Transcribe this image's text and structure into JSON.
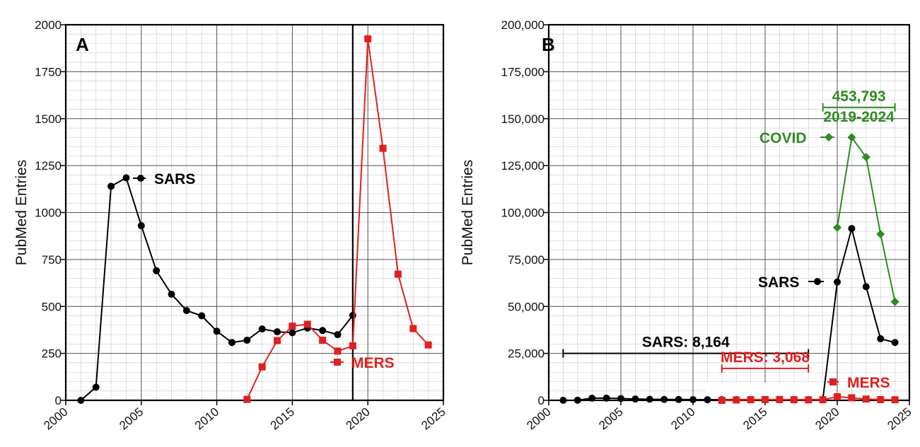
{
  "chart_data": [
    {
      "type": "line",
      "panel_label": "A",
      "ylabel": "PubMed Entries",
      "xlim": [
        2000,
        2025
      ],
      "ylim": [
        0,
        2000
      ],
      "x_ticks": [
        "2000",
        "2005",
        "2010",
        "2015",
        "2020",
        "2025"
      ],
      "y_ticks": [
        "0",
        "250",
        "500",
        "750",
        "1000",
        "1250",
        "1500",
        "1750",
        "2000"
      ],
      "grid": true,
      "vline_x": 2019,
      "series": [
        {
          "name": "SARS",
          "color": "#000000",
          "marker": "circle",
          "x": [
            2001,
            2002,
            2003,
            2004,
            2005,
            2006,
            2007,
            2008,
            2009,
            2010,
            2011,
            2012,
            2013,
            2014,
            2015,
            2016,
            2017,
            2018,
            2019
          ],
          "y": [
            0,
            70,
            1140,
            1185,
            930,
            690,
            565,
            478,
            450,
            368,
            308,
            320,
            380,
            365,
            360,
            385,
            372,
            350,
            452
          ]
        },
        {
          "name": "MERS",
          "color": "#e02020",
          "marker": "square",
          "x": [
            2012,
            2013,
            2014,
            2015,
            2016,
            2017,
            2018,
            2019,
            2020,
            2021,
            2022,
            2023,
            2024
          ],
          "y": [
            5,
            178,
            318,
            395,
            405,
            320,
            262,
            290,
            1925,
            1342,
            672,
            382,
            295
          ]
        }
      ],
      "annotations": [
        {
          "text": "SARS",
          "color": "#000000",
          "series": "SARS"
        },
        {
          "text": "MERS",
          "color": "#e02020",
          "series": "MERS"
        }
      ]
    },
    {
      "type": "line",
      "panel_label": "B",
      "ylabel": "PubMed Entries",
      "xlim": [
        2000,
        2025
      ],
      "ylim": [
        0,
        200000
      ],
      "x_ticks": [
        "2000",
        "2005",
        "2010",
        "2015",
        "2020",
        "2025"
      ],
      "y_ticks": [
        "0",
        "25,000",
        "50,000",
        "75,000",
        "100,000",
        "125,000",
        "150,000",
        "175,000",
        "200,000"
      ],
      "grid": true,
      "series": [
        {
          "name": "SARS",
          "color": "#000000",
          "marker": "circle",
          "x": [
            2001,
            2002,
            2003,
            2004,
            2005,
            2006,
            2007,
            2008,
            2009,
            2010,
            2011,
            2012,
            2013,
            2014,
            2015,
            2016,
            2017,
            2018,
            2019,
            2020,
            2021,
            2022,
            2023,
            2024
          ],
          "y": [
            0,
            70,
            1140,
            1185,
            930,
            690,
            565,
            478,
            450,
            368,
            308,
            320,
            380,
            365,
            360,
            385,
            372,
            350,
            452,
            63000,
            91500,
            60500,
            32800,
            30800
          ]
        },
        {
          "name": "MERS",
          "color": "#e02020",
          "marker": "square",
          "x": [
            2012,
            2013,
            2014,
            2015,
            2016,
            2017,
            2018,
            2019,
            2020,
            2021,
            2022,
            2023,
            2024
          ],
          "y": [
            5,
            178,
            318,
            395,
            405,
            320,
            262,
            290,
            1925,
            1342,
            672,
            382,
            295
          ]
        },
        {
          "name": "COVID",
          "color": "#2e8b22",
          "marker": "diamond",
          "x": [
            2020,
            2021,
            2022,
            2023,
            2024
          ],
          "y": [
            92000,
            140000,
            129500,
            88500,
            52500
          ]
        }
      ],
      "annotations": [
        {
          "text": "SARS",
          "color": "#000000",
          "series": "SARS"
        },
        {
          "text": "MERS",
          "color": "#e02020",
          "series": "MERS"
        },
        {
          "text": "COVID",
          "color": "#2e8b22",
          "series": "COVID"
        }
      ],
      "ranges": [
        {
          "label": "SARS: 8,164",
          "x_start": 2001,
          "x_end": 2018,
          "y": 25000,
          "color": "#000000"
        },
        {
          "label": "MERS: 3,068",
          "x_start": 2012,
          "x_end": 2018,
          "y": 17000,
          "color": "#e02020"
        },
        {
          "label": "453,793",
          "sublabel": "2019-2024",
          "x_start": 2019,
          "x_end": 2024,
          "y": 156000,
          "color": "#2e8b22"
        }
      ]
    }
  ]
}
